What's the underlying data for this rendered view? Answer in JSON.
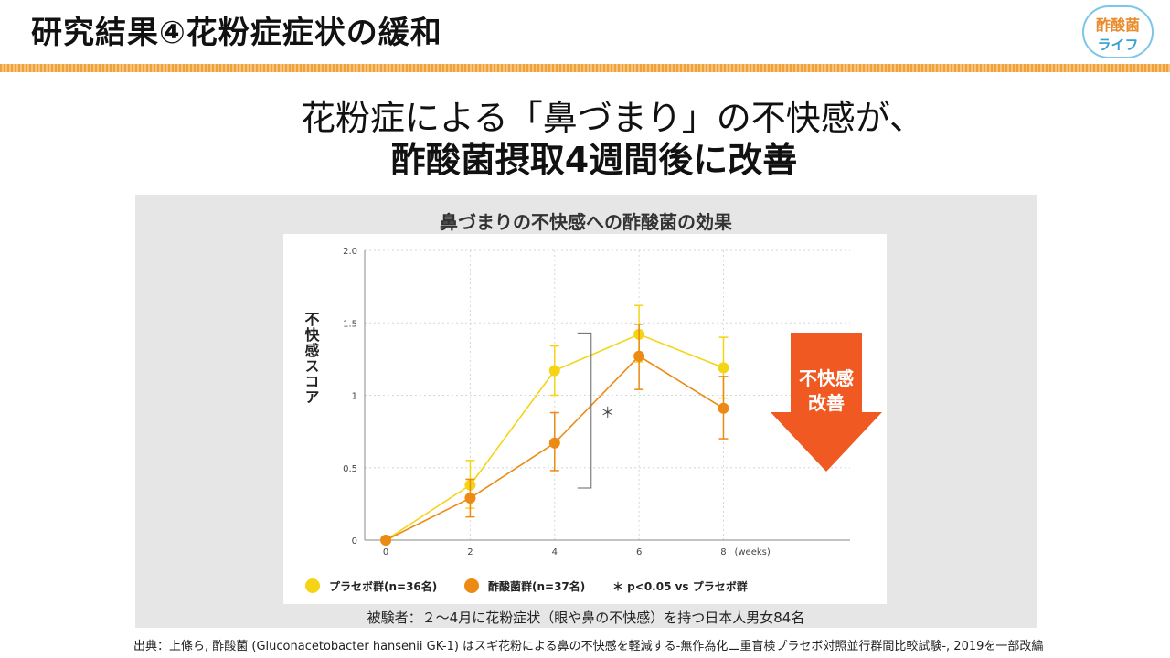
{
  "slide": {
    "title": "研究結果④花粉症症状の緩和",
    "logo_line1": "酢酸菌",
    "logo_line2": "ライフ",
    "headline_line1": "花粉症による「鼻づまり」の不快感が、",
    "headline_line2": "酢酸菌摂取4週間後に改善",
    "subjects_note": "被験者：２～4月に花粉症状（眼や鼻の不快感）を持つ日本人男女84名",
    "source": "出典：上條ら, 酢酸菌 (Gluconacetobacter  hansenii GK-1) はスギ花粉による鼻の不快感を軽減する-無作為化二重盲検プラセボ対照並行群間比較試験-, 2019を一部改編"
  },
  "chart_data": {
    "type": "line",
    "title": "鼻づまりの不快感への酢酸菌の効果",
    "ylabel": "不快感スコア",
    "xlabel_unit": "(weeks)",
    "x": [
      0,
      2,
      4,
      6,
      8
    ],
    "x_tick_labels": [
      "0",
      "2",
      "4",
      "6",
      "8"
    ],
    "y_tick_labels": [
      "0",
      "0.5",
      "1",
      "1.5",
      "2.0"
    ],
    "xlim": [
      -0.5,
      11
    ],
    "ylim": [
      0,
      2.0
    ],
    "series": [
      {
        "name": "プラセボ群(n=36名)",
        "color": "#f5d416",
        "values": [
          0,
          0.38,
          1.17,
          1.42,
          1.19
        ],
        "err_upper": [
          0,
          0.55,
          1.34,
          1.62,
          1.4
        ],
        "err_lower": [
          0,
          0.22,
          1.0,
          1.23,
          0.98
        ]
      },
      {
        "name": "酢酸菌群(n=37名)",
        "color": "#ec8a13",
        "values": [
          0,
          0.29,
          0.67,
          1.27,
          0.91
        ],
        "err_upper": [
          0,
          0.42,
          0.88,
          1.49,
          1.13
        ],
        "err_lower": [
          0,
          0.16,
          0.48,
          1.04,
          0.7
        ]
      }
    ],
    "significance_marker": "＊",
    "significance_note": "＊ p<0.05 vs プラセボ群",
    "arrow_label_line1": "不快感",
    "arrow_label_line2": "改善",
    "arrow_color": "#f05a22"
  }
}
